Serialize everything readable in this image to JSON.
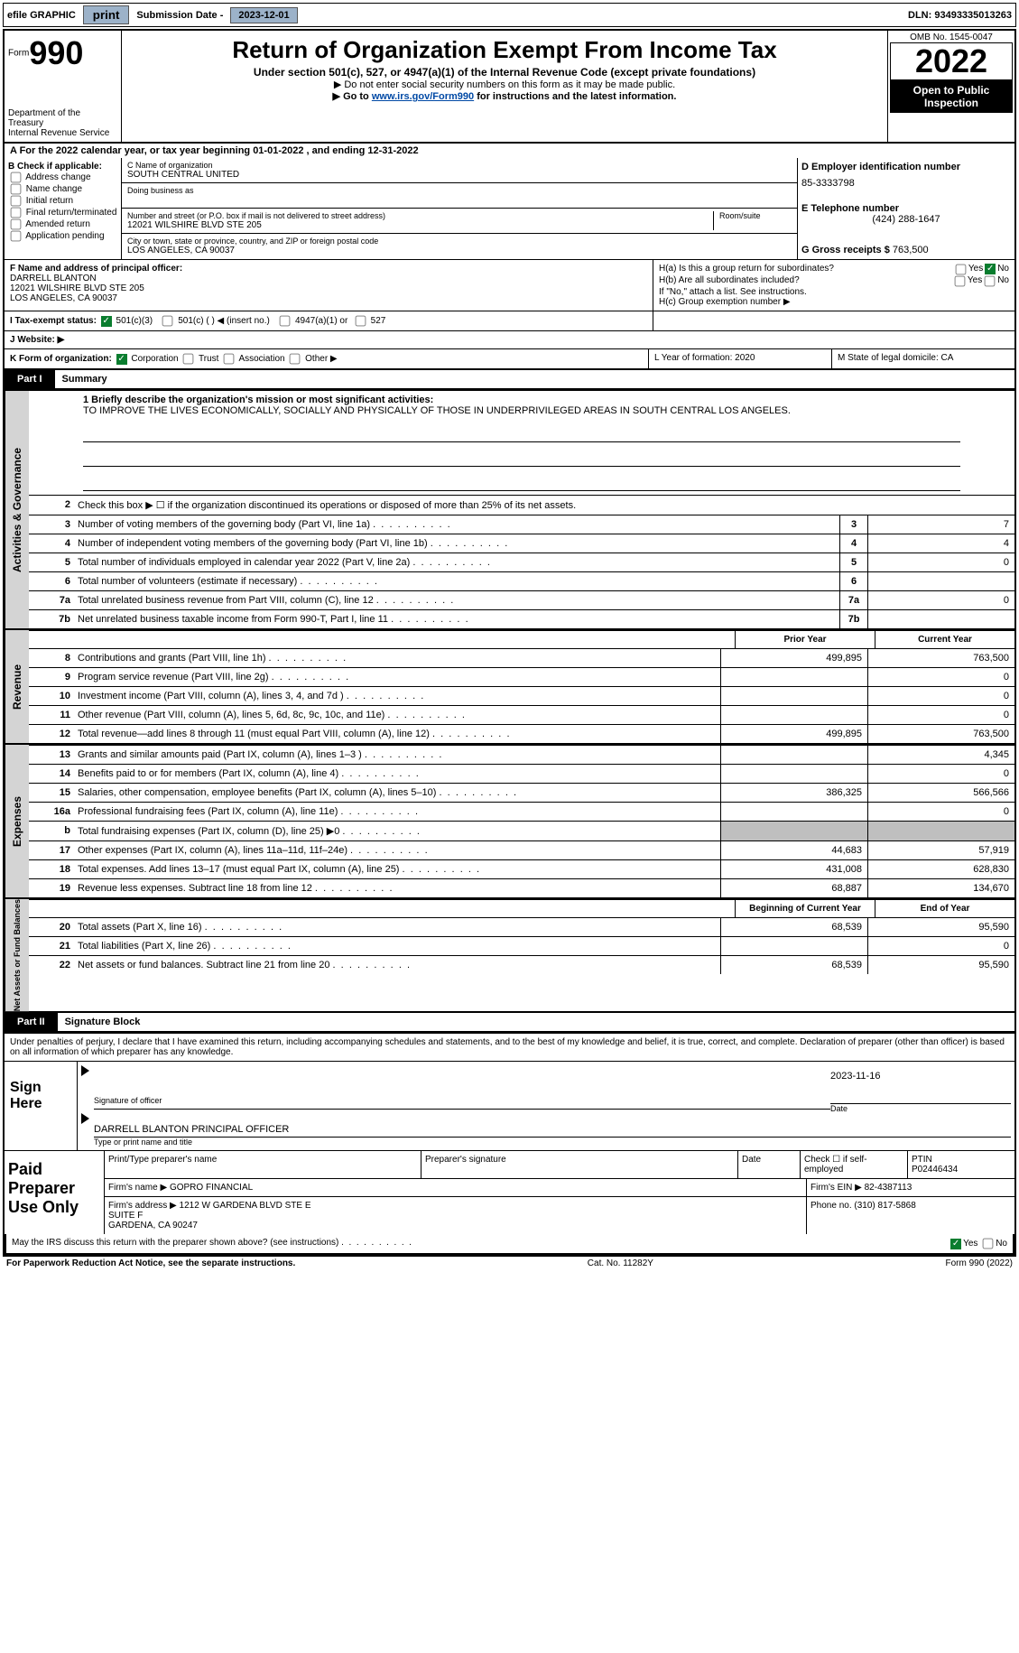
{
  "top": {
    "efile": "efile GRAPHIC",
    "print": "print",
    "subdate_lbl": "Submission Date -",
    "subdate": "2023-12-01",
    "dln_lbl": "DLN:",
    "dln": "93493335013263"
  },
  "header": {
    "form": "Form",
    "f990": "990",
    "dept": "Department of the Treasury",
    "irs": "Internal Revenue Service",
    "title": "Return of Organization Exempt From Income Tax",
    "sub1": "Under section 501(c), 527, or 4947(a)(1) of the Internal Revenue Code (except private foundations)",
    "sub2": "▶ Do not enter social security numbers on this form as it may be made public.",
    "sub3_pre": "▶ Go to ",
    "sub3_link": "www.irs.gov/Form990",
    "sub3_post": " for instructions and the latest information.",
    "omb_lbl": "OMB No. 1545-0047",
    "year": "2022",
    "public": "Open to Public Inspection"
  },
  "a_line": "A For the 2022 calendar year, or tax year beginning 01-01-2022    , and ending 12-31-2022",
  "b": {
    "hdr": "B Check if applicable:",
    "addr": "Address change",
    "name": "Name change",
    "init": "Initial return",
    "final": "Final return/terminated",
    "amend": "Amended return",
    "app": "Application pending"
  },
  "c": {
    "name_lbl": "C Name of organization",
    "name": "SOUTH CENTRAL UNITED",
    "dba_lbl": "Doing business as",
    "street_lbl": "Number and street (or P.O. box if mail is not delivered to street address)",
    "street": "12021 WILSHIRE BLVD STE 205",
    "room_lbl": "Room/suite",
    "city_lbl": "City or town, state or province, country, and ZIP or foreign postal code",
    "city": "LOS ANGELES, CA  90037"
  },
  "d": {
    "ein_lbl": "D Employer identification number",
    "ein": "85-3333798",
    "tel_lbl": "E Telephone number",
    "tel": "(424) 288-1647",
    "gross_lbl": "G Gross receipts $",
    "gross": "763,500"
  },
  "f": {
    "lbl": "F Name and address of principal officer:",
    "name": "DARRELL BLANTON",
    "addr1": "12021 WILSHIRE BLVD STE 205",
    "addr2": "LOS ANGELES, CA  90037"
  },
  "h": {
    "a": "H(a)  Is this a group return for subordinates?",
    "yes": "Yes",
    "no": "No",
    "b": "H(b)  Are all subordinates included?",
    "b2": "If \"No,\" attach a list. See instructions.",
    "c": "H(c)  Group exemption number ▶"
  },
  "i": {
    "lbl": "I  Tax-exempt status:",
    "c3": "501(c)(3)",
    "c": "501(c) (  ) ◀ (insert no.)",
    "a4947": "4947(a)(1) or",
    "s527": "527"
  },
  "j": "J  Website: ▶",
  "k": {
    "lbl": "K Form of organization:",
    "corp": "Corporation",
    "trust": "Trust",
    "assoc": "Association",
    "other": "Other ▶"
  },
  "l": "L Year of formation: 2020",
  "m": "M State of legal domicile: CA",
  "part1": {
    "num": "Part I",
    "title": "Summary"
  },
  "mission_lbl": "1  Briefly describe the organization's mission or most significant activities:",
  "mission": "TO IMPROVE THE LIVES ECONOMICALLY, SOCIALLY AND PHYSICALLY OF THOSE IN UNDERPRIVILEGED AREAS IN SOUTH CENTRAL LOS ANGELES.",
  "l2": "Check this box ▶ ☐  if the organization discontinued its operations or disposed of more than 25% of its net assets.",
  "lines": {
    "3": {
      "d": "Number of voting members of the governing body (Part VI, line 1a)",
      "n": "3",
      "v": "7"
    },
    "4": {
      "d": "Number of independent voting members of the governing body (Part VI, line 1b)",
      "n": "4",
      "v": "4"
    },
    "5": {
      "d": "Total number of individuals employed in calendar year 2022 (Part V, line 2a)",
      "n": "5",
      "v": "0"
    },
    "6": {
      "d": "Total number of volunteers (estimate if necessary)",
      "n": "6",
      "v": ""
    },
    "7a": {
      "d": "Total unrelated business revenue from Part VIII, column (C), line 12",
      "n": "7a",
      "v": "0"
    },
    "7b": {
      "d": "Net unrelated business taxable income from Form 990-T, Part I, line 11",
      "n": "7b",
      "v": ""
    }
  },
  "yrhdr": {
    "prior": "Prior Year",
    "curr": "Current Year"
  },
  "rev": [
    {
      "n": "8",
      "d": "Contributions and grants (Part VIII, line 1h)",
      "p": "499,895",
      "c": "763,500"
    },
    {
      "n": "9",
      "d": "Program service revenue (Part VIII, line 2g)",
      "p": "",
      "c": "0"
    },
    {
      "n": "10",
      "d": "Investment income (Part VIII, column (A), lines 3, 4, and 7d )",
      "p": "",
      "c": "0"
    },
    {
      "n": "11",
      "d": "Other revenue (Part VIII, column (A), lines 5, 6d, 8c, 9c, 10c, and 11e)",
      "p": "",
      "c": "0"
    },
    {
      "n": "12",
      "d": "Total revenue—add lines 8 through 11 (must equal Part VIII, column (A), line 12)",
      "p": "499,895",
      "c": "763,500"
    }
  ],
  "exp": [
    {
      "n": "13",
      "d": "Grants and similar amounts paid (Part IX, column (A), lines 1–3 )",
      "p": "",
      "c": "4,345"
    },
    {
      "n": "14",
      "d": "Benefits paid to or for members (Part IX, column (A), line 4)",
      "p": "",
      "c": "0"
    },
    {
      "n": "15",
      "d": "Salaries, other compensation, employee benefits (Part IX, column (A), lines 5–10)",
      "p": "386,325",
      "c": "566,566"
    },
    {
      "n": "16a",
      "d": "Professional fundraising fees (Part IX, column (A), line 11e)",
      "p": "",
      "c": "0"
    },
    {
      "n": "b",
      "d": "Total fundraising expenses (Part IX, column (D), line 25) ▶0",
      "p": "grey",
      "c": "grey"
    },
    {
      "n": "17",
      "d": "Other expenses (Part IX, column (A), lines 11a–11d, 11f–24e)",
      "p": "44,683",
      "c": "57,919"
    },
    {
      "n": "18",
      "d": "Total expenses. Add lines 13–17 (must equal Part IX, column (A), line 25)",
      "p": "431,008",
      "c": "628,830"
    },
    {
      "n": "19",
      "d": "Revenue less expenses. Subtract line 18 from line 12",
      "p": "68,887",
      "c": "134,670"
    }
  ],
  "nethdr": {
    "beg": "Beginning of Current Year",
    "end": "End of Year"
  },
  "net": [
    {
      "n": "20",
      "d": "Total assets (Part X, line 16)",
      "p": "68,539",
      "c": "95,590"
    },
    {
      "n": "21",
      "d": "Total liabilities (Part X, line 26)",
      "p": "",
      "c": "0"
    },
    {
      "n": "22",
      "d": "Net assets or fund balances. Subtract line 21 from line 20",
      "p": "68,539",
      "c": "95,590"
    }
  ],
  "sidelabels": {
    "ag": "Activities & Governance",
    "rev": "Revenue",
    "exp": "Expenses",
    "net": "Net Assets or Fund Balances"
  },
  "part2": {
    "num": "Part II",
    "title": "Signature Block"
  },
  "sig_text": "Under penalties of perjury, I declare that I have examined this return, including accompanying schedules and statements, and to the best of my knowledge and belief, it is true, correct, and complete. Declaration of preparer (other than officer) is based on all information of which preparer has any knowledge.",
  "sig": {
    "sign": "Sign Here",
    "sig_off": "Signature of officer",
    "date_lbl": "Date",
    "date": "2023-11-16",
    "name": "DARRELL BLANTON  PRINCIPAL OFFICER",
    "name_lbl": "Type or print name and title"
  },
  "prep": {
    "lbl": "Paid Preparer Use Only",
    "h1": "Print/Type preparer's name",
    "h2": "Preparer's signature",
    "h3": "Date",
    "h4": "Check ☐ if self-employed",
    "h5_lbl": "PTIN",
    "h5": "P02446434",
    "firm_lbl": "Firm's name     ▶",
    "firm": "GOPRO FINANCIAL",
    "ein_lbl": "Firm's EIN ▶",
    "ein": "82-4387113",
    "addr_lbl": "Firm's address ▶",
    "addr": "1212 W GARDENA BLVD STE E\nSUITE F\nGARDENA, CA  90247",
    "tel_lbl": "Phone no.",
    "tel": "(310) 817-5868"
  },
  "discuss": "May the IRS discuss this return with the preparer shown above? (see instructions)",
  "bottom": {
    "l": "For Paperwork Reduction Act Notice, see the separate instructions.",
    "m": "Cat. No. 11282Y",
    "r": "Form 990 (2022)"
  }
}
